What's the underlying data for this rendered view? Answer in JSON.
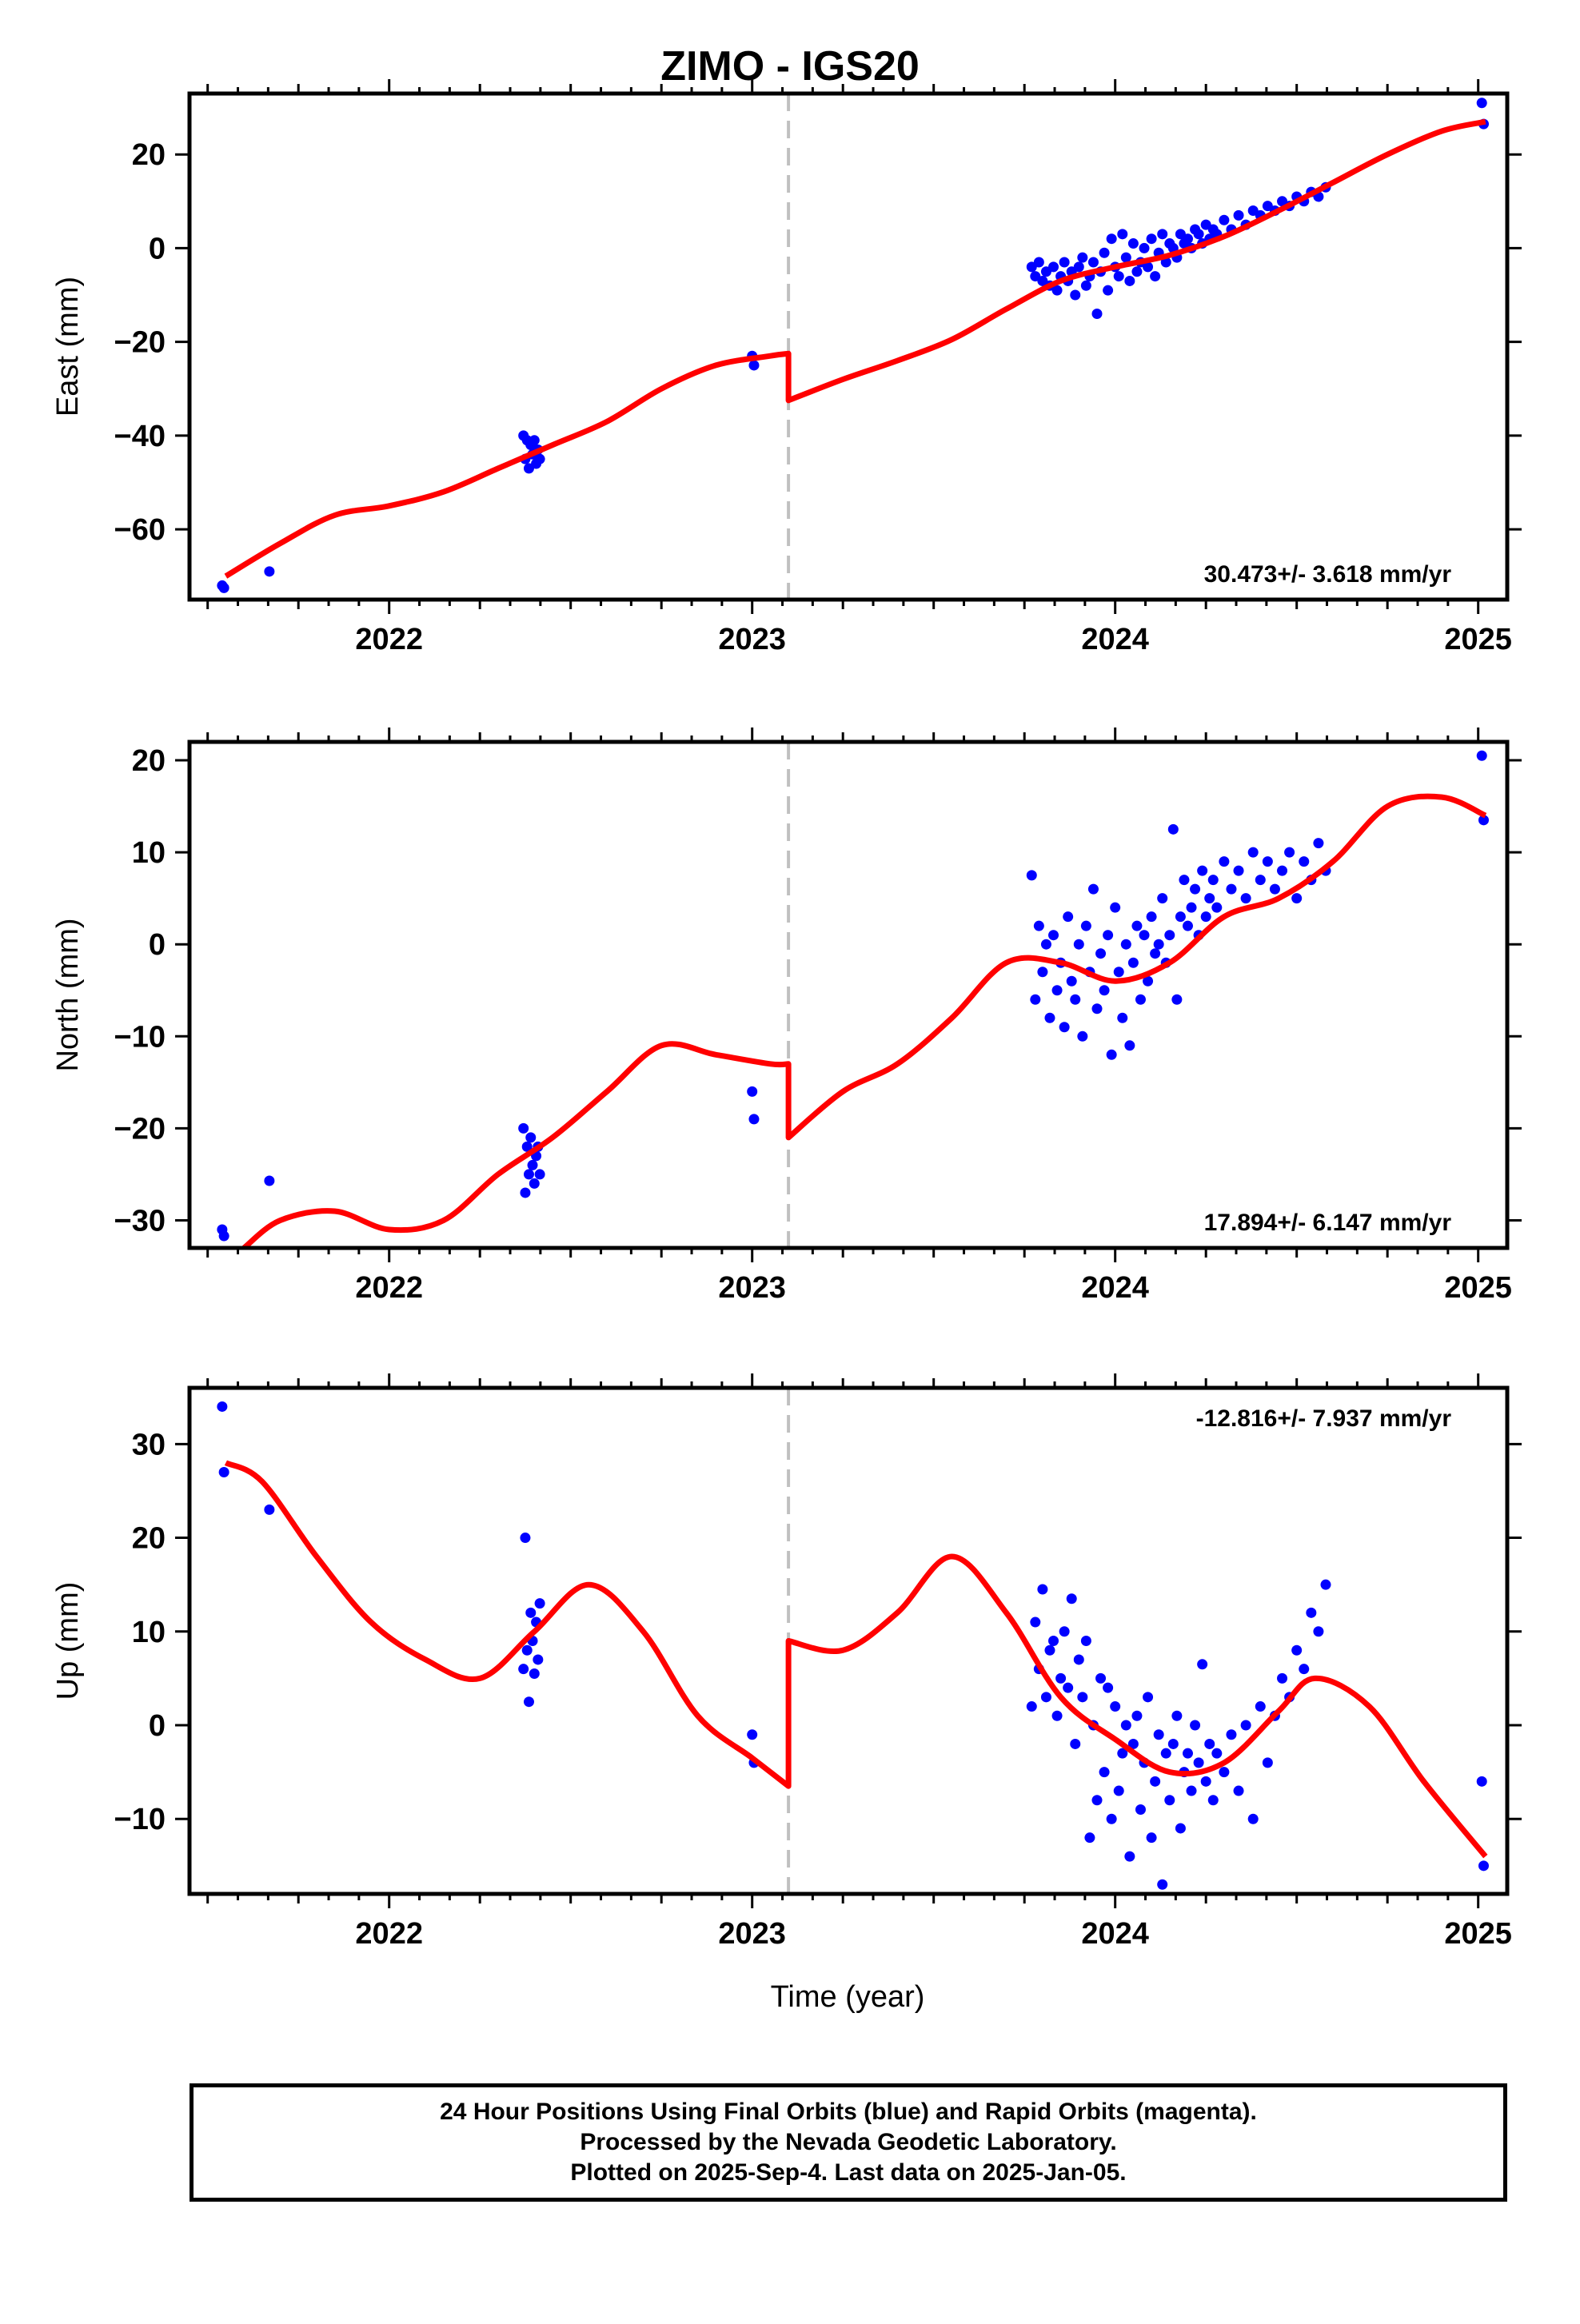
{
  "title": "ZIMO - IGS20",
  "xlabel": "Time (year)",
  "footer": {
    "line1": "24 Hour Positions Using Final Orbits (blue) and Rapid Orbits (magenta).",
    "line2": "Processed by the Nevada Geodetic Laboratory.",
    "line3": "Plotted on 2025-Sep-4. Last data on 2025-Jan-05."
  },
  "colors": {
    "points": "#0000ff",
    "model": "#ff0000",
    "offset_line": "#c0c0c0"
  },
  "chart_data": [
    {
      "type": "scatter",
      "ylabel": "East (mm)",
      "rate_label": "30.473+/- 3.618 mm/yr",
      "xlim": [
        2021.45,
        2025.08
      ],
      "ylim": [
        -75,
        33
      ],
      "yticks": [
        -60,
        -40,
        -20,
        0,
        20
      ],
      "xticks": [
        2022,
        2023,
        2024,
        2025
      ],
      "offset_epoch": 2023.1,
      "series": [
        {
          "role": "observations",
          "x": [
            2021.54,
            2021.545,
            2021.67,
            2022.37,
            2022.375,
            2022.38,
            2022.385,
            2022.39,
            2022.395,
            2022.4,
            2022.405,
            2022.41,
            2022.415,
            2023.0,
            2023.005,
            2023.77,
            2023.78,
            2023.79,
            2023.8,
            2023.81,
            2023.82,
            2023.83,
            2023.84,
            2023.85,
            2023.86,
            2023.87,
            2023.88,
            2023.89,
            2023.9,
            2023.91,
            2023.92,
            2023.93,
            2023.94,
            2023.95,
            2023.96,
            2023.97,
            2023.98,
            2023.99,
            2024.0,
            2024.01,
            2024.02,
            2024.03,
            2024.04,
            2024.05,
            2024.06,
            2024.07,
            2024.08,
            2024.09,
            2024.1,
            2024.11,
            2024.12,
            2024.13,
            2024.14,
            2024.15,
            2024.16,
            2024.17,
            2024.18,
            2024.19,
            2024.2,
            2024.21,
            2024.22,
            2024.23,
            2024.24,
            2024.25,
            2024.26,
            2024.27,
            2024.28,
            2024.3,
            2024.32,
            2024.34,
            2024.36,
            2024.38,
            2024.4,
            2024.42,
            2024.44,
            2024.46,
            2024.48,
            2024.5,
            2024.52,
            2024.54,
            2024.56,
            2024.58,
            2025.01,
            2025.015
          ],
          "y": [
            -72,
            -72.5,
            -69,
            -40,
            -45,
            -41,
            -47,
            -42,
            -44,
            -41,
            -46,
            -43,
            -45,
            -23,
            -25,
            -4,
            -6,
            -3,
            -7,
            -5,
            -8,
            -4,
            -9,
            -6,
            -3,
            -7,
            -5,
            -10,
            -4,
            -2,
            -8,
            -6,
            -3,
            -14,
            -5,
            -1,
            -9,
            2,
            -4,
            -6,
            3,
            -2,
            -7,
            1,
            -5,
            -3,
            0,
            -4,
            2,
            -6,
            -1,
            3,
            -3,
            1,
            0,
            -2,
            3,
            1,
            2,
            0,
            4,
            3,
            1,
            5,
            2,
            4,
            3,
            6,
            4,
            7,
            5,
            8,
            7,
            9,
            8,
            10,
            9,
            11,
            10,
            12,
            11,
            13,
            31,
            26.5
          ]
        },
        {
          "role": "model",
          "x": [
            2021.55,
            2021.7,
            2021.85,
            2022.0,
            2022.15,
            2022.3,
            2022.45,
            2022.6,
            2022.75,
            2022.9,
            2023.05,
            2023.1,
            2023.1,
            2023.25,
            2023.4,
            2023.55,
            2023.7,
            2023.85,
            2024.0,
            2024.15,
            2024.3,
            2024.45,
            2024.6,
            2024.75,
            2024.9,
            2025.02
          ],
          "y": [
            -70,
            -63,
            -57,
            -55,
            -52,
            -47,
            -42,
            -37,
            -30,
            -25,
            -23,
            -22.5,
            -32.5,
            -28,
            -24,
            -19.5,
            -13,
            -7,
            -4,
            -1.5,
            2.5,
            8,
            14,
            20,
            25,
            27
          ]
        }
      ]
    },
    {
      "type": "scatter",
      "ylabel": "North (mm)",
      "rate_label": "17.894+/- 6.147 mm/yr",
      "xlim": [
        2021.45,
        2025.08
      ],
      "ylim": [
        -33,
        22
      ],
      "yticks": [
        -30,
        -20,
        -10,
        0,
        10,
        20
      ],
      "xticks": [
        2022,
        2023,
        2024,
        2025
      ],
      "offset_epoch": 2023.1,
      "series": [
        {
          "role": "observations",
          "x": [
            2021.54,
            2021.545,
            2021.67,
            2022.37,
            2022.375,
            2022.38,
            2022.385,
            2022.39,
            2022.395,
            2022.4,
            2022.405,
            2022.41,
            2022.415,
            2023.0,
            2023.005,
            2023.77,
            2023.78,
            2023.79,
            2023.8,
            2023.81,
            2023.82,
            2023.83,
            2023.84,
            2023.85,
            2023.86,
            2023.87,
            2023.88,
            2023.89,
            2023.9,
            2023.91,
            2023.92,
            2023.93,
            2023.94,
            2023.95,
            2023.96,
            2023.97,
            2023.98,
            2023.99,
            2024.0,
            2024.01,
            2024.02,
            2024.03,
            2024.04,
            2024.05,
            2024.06,
            2024.07,
            2024.08,
            2024.09,
            2024.1,
            2024.11,
            2024.12,
            2024.13,
            2024.14,
            2024.15,
            2024.16,
            2024.17,
            2024.18,
            2024.19,
            2024.2,
            2024.21,
            2024.22,
            2024.23,
            2024.24,
            2024.25,
            2024.26,
            2024.27,
            2024.28,
            2024.3,
            2024.32,
            2024.34,
            2024.36,
            2024.38,
            2024.4,
            2024.42,
            2024.44,
            2024.46,
            2024.48,
            2024.5,
            2024.52,
            2024.54,
            2024.56,
            2024.58,
            2025.01,
            2025.015
          ],
          "y": [
            -31,
            -31.7,
            -25.7,
            -20,
            -27,
            -22,
            -25,
            -21,
            -24,
            -26,
            -23,
            -22,
            -25,
            -16,
            -19,
            7.5,
            -6,
            2,
            -3,
            0,
            -8,
            1,
            -5,
            -2,
            -9,
            3,
            -4,
            -6,
            0,
            -10,
            2,
            -3,
            6,
            -7,
            -1,
            -5,
            1,
            -12,
            4,
            -3,
            -8,
            0,
            -11,
            -2,
            2,
            -6,
            1,
            -4,
            3,
            -1,
            0,
            5,
            -2,
            1,
            12.5,
            -6,
            3,
            7,
            2,
            4,
            6,
            1,
            8,
            3,
            5,
            7,
            4,
            9,
            6,
            8,
            5,
            10,
            7,
            9,
            6,
            8,
            10,
            5,
            9,
            7,
            11,
            8,
            20.5,
            13.5
          ]
        },
        {
          "role": "model",
          "x": [
            2021.6,
            2021.7,
            2021.85,
            2022.0,
            2022.15,
            2022.3,
            2022.45,
            2022.6,
            2022.75,
            2022.9,
            2023.05,
            2023.1,
            2023.1,
            2023.25,
            2023.4,
            2023.55,
            2023.7,
            2023.85,
            2024.0,
            2024.15,
            2024.3,
            2024.45,
            2024.6,
            2024.75,
            2024.9,
            2025.02
          ],
          "y": [
            -33,
            -30,
            -29,
            -31,
            -30,
            -25,
            -21,
            -16,
            -11,
            -12,
            -13,
            -13,
            -21,
            -16,
            -13,
            -8,
            -2,
            -2,
            -4,
            -2,
            3,
            5,
            9,
            15,
            16,
            14
          ]
        }
      ]
    },
    {
      "type": "scatter",
      "ylabel": "Up (mm)",
      "rate_label": "-12.816+/- 7.937 mm/yr",
      "xlim": [
        2021.45,
        2025.08
      ],
      "ylim": [
        -18,
        36
      ],
      "yticks": [
        -10,
        0,
        10,
        20,
        30
      ],
      "xticks": [
        2022,
        2023,
        2024,
        2025
      ],
      "offset_epoch": 2023.1,
      "series": [
        {
          "role": "observations",
          "x": [
            2021.54,
            2021.545,
            2021.67,
            2022.37,
            2022.375,
            2022.38,
            2022.385,
            2022.39,
            2022.395,
            2022.4,
            2022.405,
            2022.41,
            2022.415,
            2023.0,
            2023.005,
            2023.77,
            2023.78,
            2023.79,
            2023.8,
            2023.81,
            2023.82,
            2023.83,
            2023.84,
            2023.85,
            2023.86,
            2023.87,
            2023.88,
            2023.89,
            2023.9,
            2023.91,
            2023.92,
            2023.93,
            2023.94,
            2023.95,
            2023.96,
            2023.97,
            2023.98,
            2023.99,
            2024.0,
            2024.01,
            2024.02,
            2024.03,
            2024.04,
            2024.05,
            2024.06,
            2024.07,
            2024.08,
            2024.09,
            2024.1,
            2024.11,
            2024.12,
            2024.13,
            2024.14,
            2024.15,
            2024.16,
            2024.17,
            2024.18,
            2024.19,
            2024.2,
            2024.21,
            2024.22,
            2024.23,
            2024.24,
            2024.25,
            2024.26,
            2024.27,
            2024.28,
            2024.3,
            2024.32,
            2024.34,
            2024.36,
            2024.38,
            2024.4,
            2024.42,
            2024.44,
            2024.46,
            2024.48,
            2024.5,
            2024.52,
            2024.54,
            2024.56,
            2024.58,
            2025.01,
            2025.015
          ],
          "y": [
            34,
            27,
            23,
            6,
            20,
            8,
            2.5,
            12,
            9,
            5.5,
            11,
            7,
            13,
            -1,
            -4,
            2,
            11,
            6,
            14.5,
            3,
            8,
            9,
            1,
            5,
            10,
            4,
            13.5,
            -2,
            7,
            3,
            9,
            -12,
            0,
            -8,
            5,
            -5,
            4,
            -10,
            2,
            -7,
            -3,
            0,
            -14,
            -2,
            1,
            -9,
            -4,
            3,
            -12,
            -6,
            -1,
            -17,
            -3,
            -8,
            -2,
            1,
            -11,
            -5,
            -3,
            -7,
            0,
            -4,
            6.5,
            -6,
            -2,
            -8,
            -3,
            -5,
            -1,
            -7,
            0,
            -10,
            2,
            -4,
            1,
            5,
            3,
            8,
            6,
            12,
            10,
            15,
            -6,
            -15
          ]
        },
        {
          "role": "model",
          "x": [
            2021.55,
            2021.65,
            2021.8,
            2021.95,
            2022.1,
            2022.25,
            2022.4,
            2022.55,
            2022.7,
            2022.85,
            2023.0,
            2023.1,
            2023.1,
            2023.25,
            2023.4,
            2023.55,
            2023.7,
            2023.85,
            2024.0,
            2024.15,
            2024.3,
            2024.45,
            2024.55,
            2024.7,
            2024.85,
            2025.02
          ],
          "y": [
            28,
            26,
            18,
            11,
            7,
            5,
            10,
            15,
            10,
            1,
            -3.5,
            -6.5,
            9,
            8,
            12,
            18,
            12,
            3,
            -1.5,
            -5,
            -4,
            1.5,
            5,
            2,
            -6,
            -14
          ]
        }
      ]
    }
  ]
}
